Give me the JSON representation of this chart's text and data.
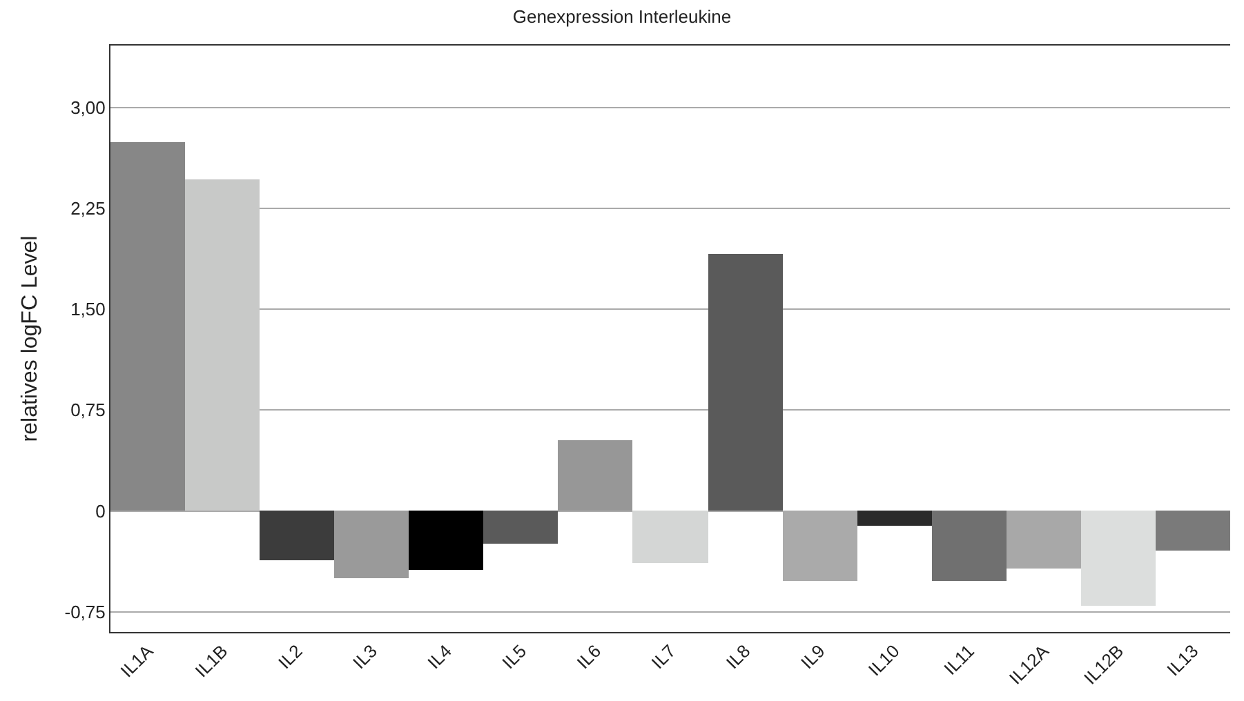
{
  "chart_data": {
    "type": "bar",
    "title": "Genexpression Interleukine",
    "ylabel": "relatives logFC Level",
    "categories": [
      "IL1A",
      "IL1B",
      "IL2",
      "IL3",
      "IL4",
      "IL5",
      "IL6",
      "IL7",
      "IL8",
      "IL9",
      "IL10",
      "IL11",
      "IL12A",
      "IL12B",
      "IL13"
    ],
    "values": [
      2.74,
      2.47,
      -0.37,
      -0.5,
      -0.44,
      -0.24,
      0.53,
      -0.39,
      1.91,
      -0.52,
      -0.11,
      -0.52,
      -0.43,
      -0.71,
      -0.29
    ],
    "colors": [
      "#878787",
      "#c8c9c8",
      "#3c3c3c",
      "#9a9a9a",
      "#000000",
      "#5a5a5a",
      "#979797",
      "#d4d6d5",
      "#5a5a5a",
      "#aaaaaa",
      "#2a2a2a",
      "#707070",
      "#a8a8a8",
      "#dcdedd",
      "#7a7a7a"
    ],
    "ylim": [
      -0.9,
      3.46
    ],
    "yticks": [
      {
        "value": -0.75,
        "label": "-0,75"
      },
      0,
      {
        "value": 0.75,
        "label": "0,75"
      },
      {
        "value": 1.5,
        "label": "1,50"
      },
      {
        "value": 2.25,
        "label": "2,25"
      },
      {
        "value": 3,
        "label": "3,00"
      }
    ],
    "grid": "y"
  }
}
